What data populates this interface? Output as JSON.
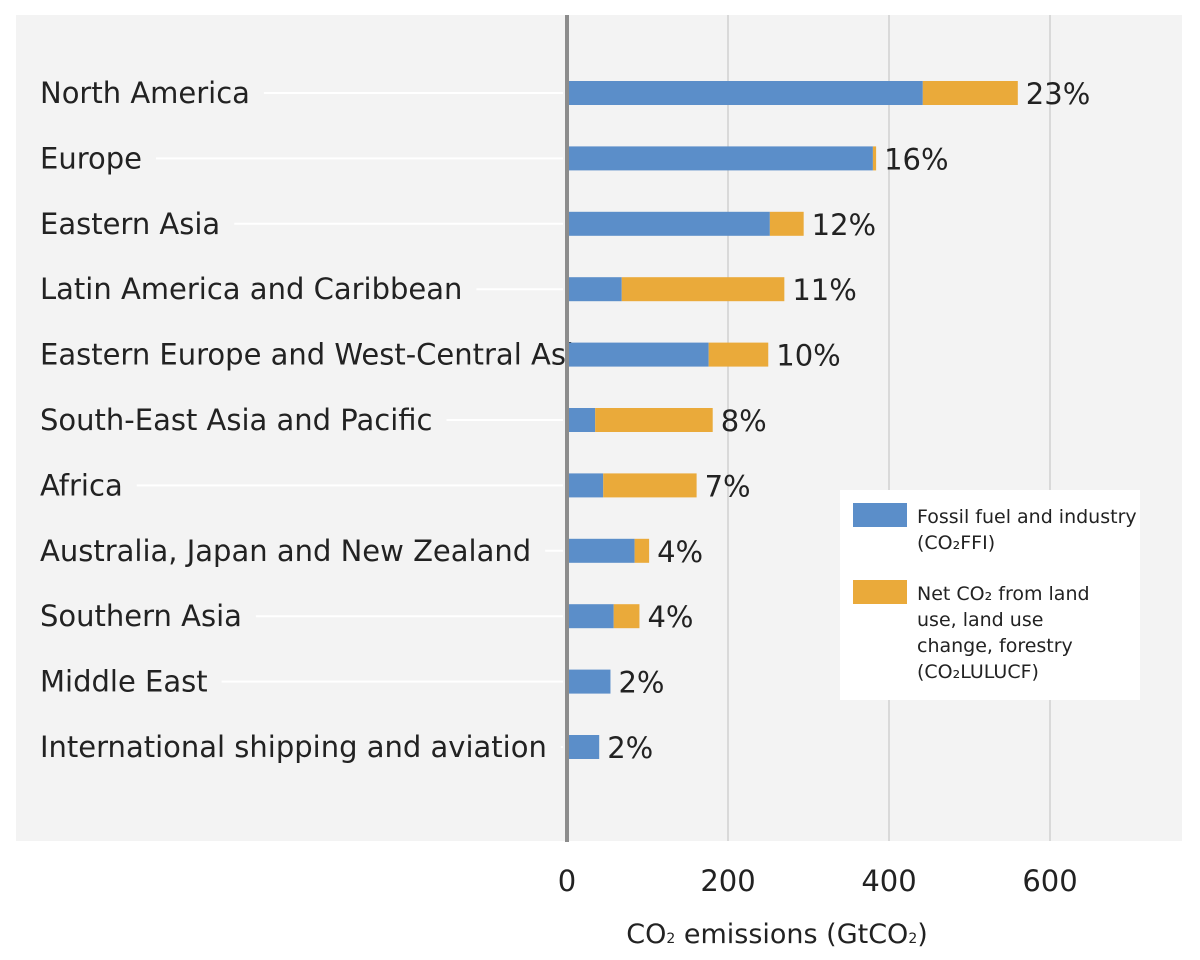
{
  "chart_data": {
    "type": "bar",
    "orientation": "horizontal",
    "stacked": true,
    "categories": [
      "North America",
      "Europe",
      "Eastern Asia",
      "Latin America and Caribbean",
      "Eastern Europe and West-Central Asia",
      "South-East Asia and Pacific",
      "Africa",
      "Australia, Japan and New Zealand",
      "Southern Asia",
      "Middle East",
      "International shipping and aviation"
    ],
    "series": [
      {
        "name": "Fossil fuel and industry",
        "name_formula": "(CO₂FFI)",
        "color": "#5b8ec9",
        "values": [
          442,
          380,
          252,
          68,
          176,
          35,
          45,
          84,
          58,
          54,
          40
        ]
      },
      {
        "name": "Net CO₂ from land use, land use change, forestry",
        "name_formula": "(CO₂LULUCF)",
        "color": "#eaaa3a",
        "values": [
          118,
          4,
          42,
          202,
          74,
          146,
          116,
          18,
          32,
          0,
          0
        ]
      }
    ],
    "share_labels": [
      "23%",
      "16%",
      "12%",
      "11%",
      "10%",
      "8%",
      "7%",
      "4%",
      "4%",
      "2%",
      "2%"
    ],
    "xlabel_parts": [
      "CO",
      "2",
      " emissions (GtCO",
      "2",
      ")"
    ],
    "xticks": [
      0,
      200,
      400,
      600
    ],
    "xlim": [
      0,
      750
    ],
    "grid": true,
    "legend": {
      "position": "right",
      "entries": [
        {
          "lines": [
            "Fossil fuel and industry",
            "(CO₂FFI)"
          ],
          "color": "#5b8ec9"
        },
        {
          "lines": [
            "Net CO₂ from land",
            "use, land use",
            "change, forestry",
            "(CO₂LULUCF)"
          ],
          "color": "#eaaa3a"
        }
      ]
    },
    "colors": {
      "panel_bg": "#f3f3f3",
      "grid": "#c8c8c8",
      "zero_axis": "#8c8c8c",
      "leader": "#ffffff"
    }
  }
}
